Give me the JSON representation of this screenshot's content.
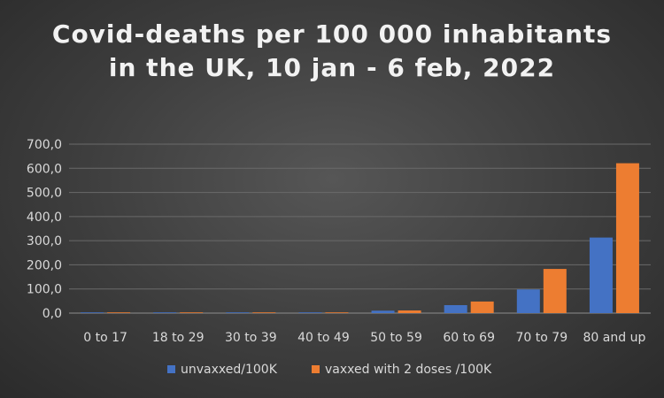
{
  "chart_data": {
    "type": "bar",
    "title": "Covid-deaths per 100 000 inhabitants in the UK, 10 jan - 6 feb, 2022",
    "categories": [
      "0 to 17",
      "18 to 29",
      "30 to 39",
      "40 to 49",
      "50 to 59",
      "60 to 69",
      "70 to 79",
      "80 and up"
    ],
    "series": [
      {
        "name": "unvaxxed/100K",
        "values": [
          0.2,
          0.4,
          1.0,
          1.9,
          10.0,
          33.0,
          98.0,
          313.0
        ],
        "color": "#4472c4"
      },
      {
        "name": "vaxxed with 2 doses /100K",
        "values": [
          0.1,
          0.3,
          0.5,
          1.5,
          11.0,
          48.0,
          183.0,
          621.0
        ],
        "color": "#ed7d31"
      }
    ],
    "xlabel": "",
    "ylabel": "",
    "ylim": [
      0,
      700
    ],
    "yticks": [
      "0,0",
      "100,0",
      "200,0",
      "300,0",
      "400,0",
      "500,0",
      "600,0",
      "700,0"
    ],
    "grid": true,
    "legend_position": "bottom"
  }
}
